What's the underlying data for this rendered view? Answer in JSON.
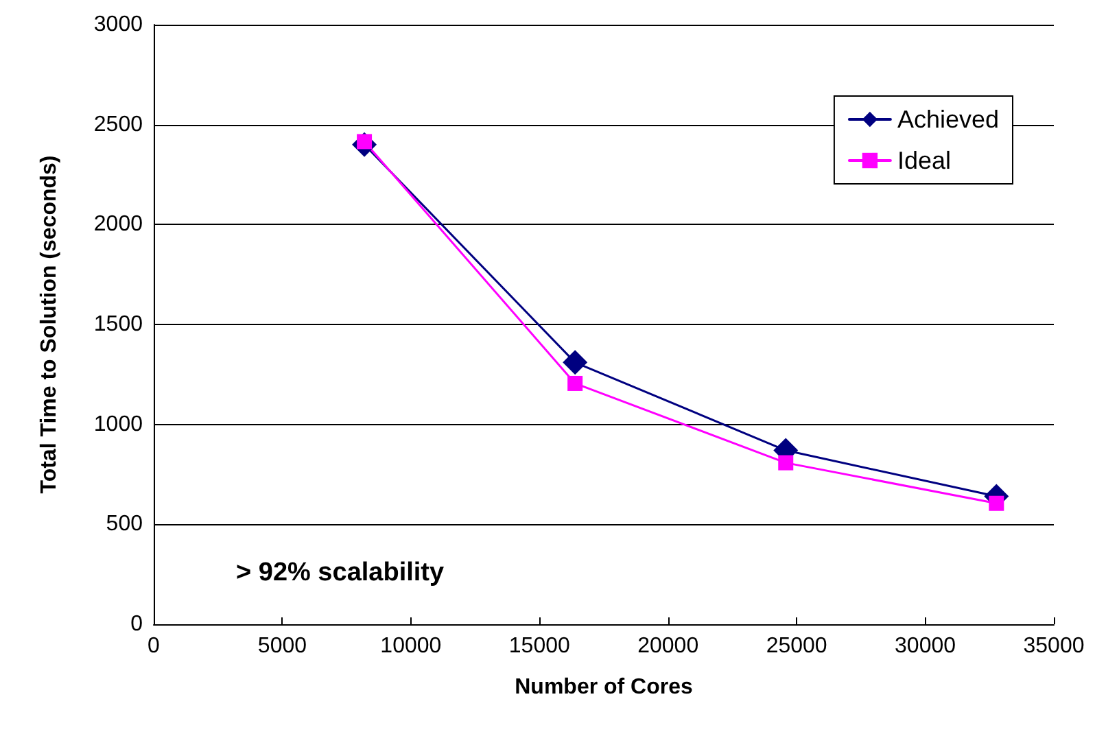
{
  "chart_data": {
    "type": "line",
    "xlabel": "Number of Cores",
    "ylabel": "Total Time to Solution (seconds)",
    "x": [
      8192,
      16384,
      24576,
      32768
    ],
    "series": [
      {
        "name": "Achieved",
        "color": "#000080",
        "marker": "diamond",
        "values": [
          2400,
          1310,
          870,
          640
        ]
      },
      {
        "name": "Ideal",
        "color": "#ff00ff",
        "marker": "square",
        "values": [
          2415,
          1205,
          808,
          605
        ]
      }
    ],
    "xlim": [
      0,
      35000
    ],
    "xticks": [
      0,
      5000,
      10000,
      15000,
      20000,
      25000,
      30000,
      35000
    ],
    "ylim": [
      0,
      3000
    ],
    "yticks": [
      0,
      500,
      1000,
      1500,
      2000,
      2500,
      3000
    ],
    "grid": "y",
    "legend": "top right",
    "line_style": "solid",
    "annotations": [
      "> 92% scalability"
    ]
  }
}
